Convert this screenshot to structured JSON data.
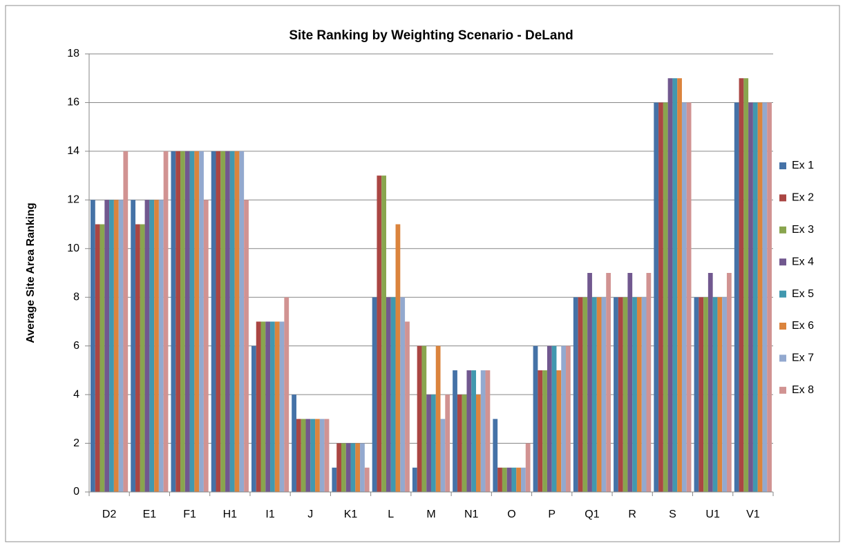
{
  "chart_data": {
    "type": "bar",
    "title": "Site Ranking by Weighting Scenario - DeLand",
    "y_label": "Average Site Area Ranking",
    "categories": [
      "D2",
      "E1",
      "F1",
      "H1",
      "I1",
      "J",
      "K1",
      "L",
      "M",
      "N1",
      "O",
      "P",
      "Q1",
      "R",
      "S",
      "U1",
      "V1"
    ],
    "series": [
      {
        "name": "Ex 1",
        "color": "#4572a7",
        "values": [
          12,
          12,
          14,
          14,
          6,
          4,
          1,
          8,
          1,
          5,
          3,
          6,
          8,
          8,
          16,
          8,
          16
        ]
      },
      {
        "name": "Ex 2",
        "color": "#aa4643",
        "values": [
          11,
          11,
          14,
          14,
          7,
          3,
          2,
          13,
          6,
          4,
          1,
          5,
          8,
          8,
          16,
          8,
          17
        ]
      },
      {
        "name": "Ex 3",
        "color": "#89a54e",
        "values": [
          11,
          11,
          14,
          14,
          7,
          3,
          2,
          13,
          6,
          4,
          1,
          5,
          8,
          8,
          16,
          8,
          17
        ]
      },
      {
        "name": "Ex 4",
        "color": "#71588f",
        "values": [
          12,
          12,
          14,
          14,
          7,
          3,
          2,
          8,
          4,
          5,
          1,
          6,
          9,
          9,
          17,
          9,
          16
        ]
      },
      {
        "name": "Ex 5",
        "color": "#4198af",
        "values": [
          12,
          12,
          14,
          14,
          7,
          3,
          2,
          8,
          4,
          5,
          1,
          6,
          8,
          8,
          17,
          8,
          16
        ]
      },
      {
        "name": "Ex 6",
        "color": "#db843d",
        "values": [
          12,
          12,
          14,
          14,
          7,
          3,
          2,
          11,
          6,
          4,
          1,
          5,
          8,
          8,
          17,
          8,
          16
        ]
      },
      {
        "name": "Ex 7",
        "color": "#93a9cf",
        "values": [
          12,
          12,
          14,
          14,
          7,
          3,
          2,
          8,
          3,
          5,
          1,
          6,
          8,
          8,
          16,
          8,
          16
        ]
      },
      {
        "name": "Ex 8",
        "color": "#d19392",
        "values": [
          14,
          14,
          12,
          12,
          8,
          3,
          1,
          7,
          4,
          5,
          2,
          6,
          9,
          9,
          16,
          9,
          16
        ]
      }
    ],
    "ylim": [
      0,
      18
    ],
    "yticks": [
      0,
      2,
      4,
      6,
      8,
      10,
      12,
      14,
      16,
      18
    ],
    "grid": true,
    "legend": "right"
  }
}
